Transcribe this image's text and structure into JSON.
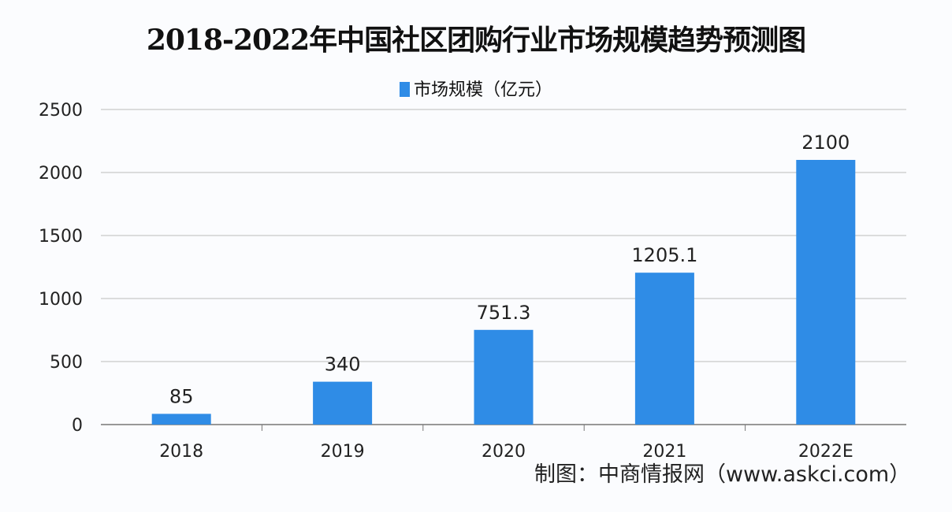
{
  "chart_data": {
    "type": "bar",
    "title": "2018-2022年中国社区团购行业市场规模趋势预测图",
    "categories": [
      "2018",
      "2019",
      "2020",
      "2021",
      "2022E"
    ],
    "series": [
      {
        "name": "市场规模（亿元）",
        "values": [
          85,
          340,
          751.3,
          1205.1,
          2100
        ],
        "labels": [
          "85",
          "340",
          "751.3",
          "1205.1",
          "2100"
        ]
      }
    ],
    "ylim": [
      0,
      2500
    ],
    "yticks": [
      0,
      500,
      1000,
      1500,
      2000,
      2500
    ],
    "grid": true,
    "legend": "top-center",
    "bar_color": "#2f8ce6"
  },
  "source": "制图：中商情报网（www.askci.com）"
}
